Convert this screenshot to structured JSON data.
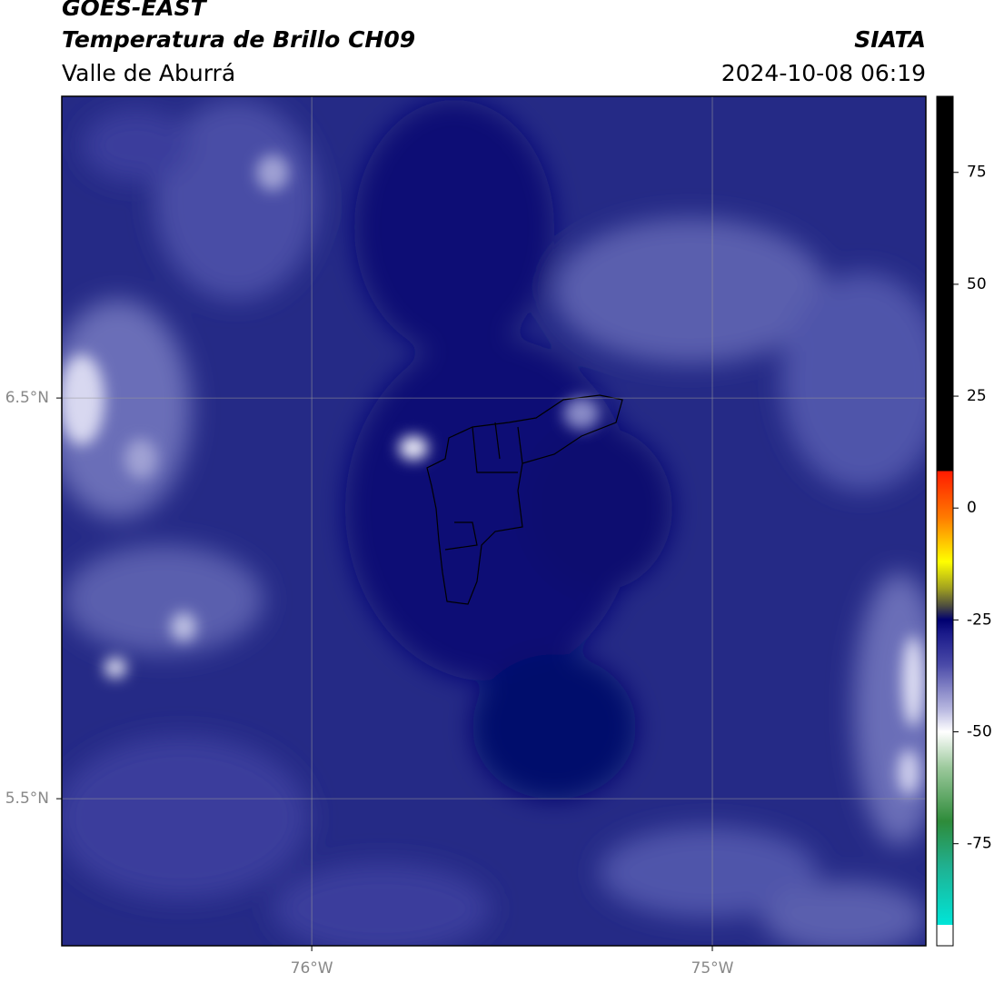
{
  "header": {
    "title": "GOES-EAST",
    "subtitle": "Temperatura de Brillo CH09",
    "region": "Valle de Aburrá",
    "source": "SIATA",
    "datetime": "2024-10-08 06:19"
  },
  "map": {
    "lonlim": [
      -76.624,
      -74.467
    ],
    "latlim": [
      5.133,
      7.253
    ],
    "lonticks": [
      {
        "value": -76,
        "label": "76°W"
      },
      {
        "value": -75,
        "label": "75°W"
      }
    ],
    "latticks": [
      {
        "value": 6.5,
        "label": "6.5°N"
      },
      {
        "value": 5.5,
        "label": "5.5°N"
      }
    ]
  },
  "colorbar": {
    "lim": [
      -97.8,
      92
    ],
    "ticks": [
      75,
      50,
      25,
      0,
      -25,
      -50,
      -75
    ],
    "stops": [
      {
        "value": 92,
        "color": "#000000"
      },
      {
        "value": 8.3,
        "color": "#000000"
      },
      {
        "value": 8.3,
        "color": "#ff1a00"
      },
      {
        "value": -2,
        "color": "#ff7a00"
      },
      {
        "value": -12,
        "color": "#ffff00"
      },
      {
        "value": -18,
        "color": "#a0a020"
      },
      {
        "value": -22,
        "color": "#4a4a40"
      },
      {
        "value": -25,
        "color": "#000070"
      },
      {
        "value": -28,
        "color": "#1a1a8a"
      },
      {
        "value": -35,
        "color": "#4a4aa8"
      },
      {
        "value": -45,
        "color": "#b8b8e0"
      },
      {
        "value": -50,
        "color": "#ffffff"
      },
      {
        "value": -58,
        "color": "#9cc99c"
      },
      {
        "value": -70,
        "color": "#2e8b3a"
      },
      {
        "value": -80,
        "color": "#20b090"
      },
      {
        "value": -93.1,
        "color": "#00e5d8"
      },
      {
        "value": -93.1,
        "color": "#ffffff"
      },
      {
        "value": -97.8,
        "color": "#ffffff"
      }
    ]
  }
}
